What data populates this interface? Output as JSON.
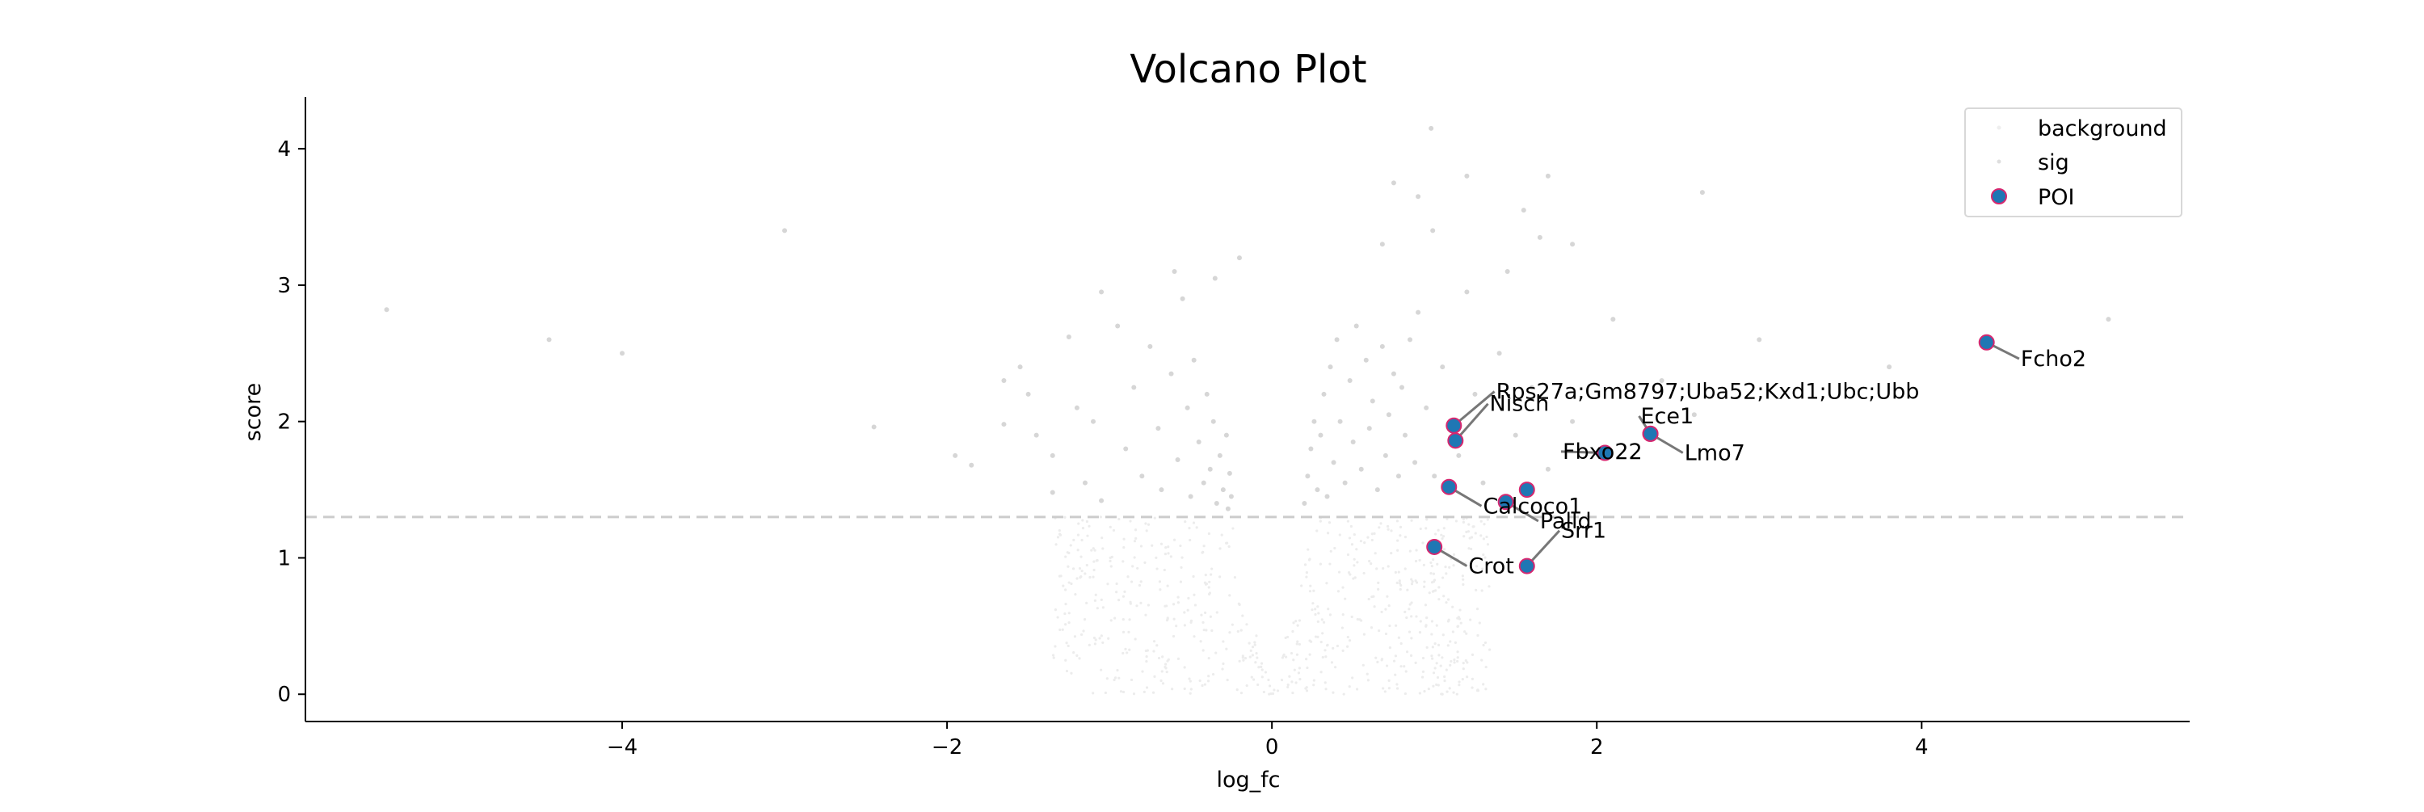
{
  "chart_data": {
    "type": "scatter",
    "title": "Volcano Plot",
    "xlabel": "log_fc",
    "ylabel": "score",
    "xlim": [
      -5.95,
      5.65
    ],
    "ylim": [
      -0.2,
      4.38
    ],
    "xticks": [
      -4,
      -2,
      0,
      2,
      4
    ],
    "yticks": [
      0,
      1,
      2,
      3,
      4
    ],
    "threshold": {
      "y": 1.3,
      "color": "#cccccc",
      "style": "dashed"
    },
    "grid": false,
    "legend": {
      "placement": "top-right",
      "entries": [
        {
          "label": "background",
          "color": "#e8e8e8"
        },
        {
          "label": "sig",
          "color": "#d9d9d9"
        },
        {
          "label": "POI",
          "color": "#1f77b4",
          "edge": "#d6276f"
        }
      ]
    },
    "series": [
      {
        "name": "sig",
        "color": "#d6d6d6",
        "points": [
          [
            -5.45,
            2.82
          ],
          [
            -4.45,
            2.6
          ],
          [
            -4.0,
            2.5
          ],
          [
            -3.0,
            3.4
          ],
          [
            -2.45,
            1.96
          ],
          [
            -1.95,
            1.75
          ],
          [
            -1.85,
            1.68
          ],
          [
            -1.65,
            2.3
          ],
          [
            -1.65,
            1.98
          ],
          [
            -1.55,
            2.4
          ],
          [
            -1.5,
            2.2
          ],
          [
            -1.45,
            1.9
          ],
          [
            -1.35,
            1.75
          ],
          [
            -1.35,
            1.48
          ],
          [
            -1.25,
            2.62
          ],
          [
            -1.2,
            2.1
          ],
          [
            -1.15,
            1.55
          ],
          [
            -1.1,
            2.0
          ],
          [
            -1.05,
            2.95
          ],
          [
            -1.05,
            1.42
          ],
          [
            -0.95,
            2.7
          ],
          [
            -0.9,
            1.8
          ],
          [
            -0.85,
            2.25
          ],
          [
            -0.8,
            1.6
          ],
          [
            -0.75,
            2.55
          ],
          [
            -0.7,
            1.95
          ],
          [
            -0.68,
            1.5
          ],
          [
            -0.62,
            2.35
          ],
          [
            -0.58,
            1.72
          ],
          [
            -0.55,
            2.9
          ],
          [
            -0.52,
            2.1
          ],
          [
            -0.5,
            1.45
          ],
          [
            -0.48,
            2.45
          ],
          [
            -0.45,
            1.85
          ],
          [
            -0.42,
            1.55
          ],
          [
            -0.4,
            2.2
          ],
          [
            -0.38,
            1.65
          ],
          [
            -0.36,
            2.0
          ],
          [
            -0.34,
            1.4
          ],
          [
            -0.32,
            1.75
          ],
          [
            -0.3,
            1.5
          ],
          [
            -0.28,
            1.9
          ],
          [
            -0.27,
            1.36
          ],
          [
            -0.26,
            1.62
          ],
          [
            -0.25,
            1.45
          ],
          [
            -0.6,
            3.1
          ],
          [
            -0.35,
            3.05
          ],
          [
            -0.2,
            3.2
          ],
          [
            0.2,
            1.4
          ],
          [
            0.22,
            1.6
          ],
          [
            0.24,
            1.8
          ],
          [
            0.26,
            2.0
          ],
          [
            0.28,
            1.5
          ],
          [
            0.3,
            1.9
          ],
          [
            0.32,
            2.2
          ],
          [
            0.34,
            1.45
          ],
          [
            0.36,
            2.4
          ],
          [
            0.38,
            1.7
          ],
          [
            0.4,
            2.6
          ],
          [
            0.42,
            2.0
          ],
          [
            0.45,
            1.55
          ],
          [
            0.48,
            2.3
          ],
          [
            0.5,
            1.85
          ],
          [
            0.52,
            2.7
          ],
          [
            0.55,
            1.65
          ],
          [
            0.58,
            2.45
          ],
          [
            0.6,
            1.95
          ],
          [
            0.62,
            2.15
          ],
          [
            0.65,
            1.5
          ],
          [
            0.68,
            2.55
          ],
          [
            0.7,
            1.75
          ],
          [
            0.72,
            2.05
          ],
          [
            0.75,
            2.35
          ],
          [
            0.78,
            1.6
          ],
          [
            0.8,
            2.25
          ],
          [
            0.82,
            1.9
          ],
          [
            0.85,
            2.6
          ],
          [
            0.88,
            1.7
          ],
          [
            0.9,
            2.8
          ],
          [
            0.95,
            2.1
          ],
          [
            1.0,
            1.6
          ],
          [
            1.05,
            2.4
          ],
          [
            1.1,
            2.0
          ],
          [
            1.15,
            1.75
          ],
          [
            1.2,
            2.95
          ],
          [
            1.25,
            2.2
          ],
          [
            1.3,
            1.55
          ],
          [
            1.4,
            2.5
          ],
          [
            1.5,
            1.9
          ],
          [
            1.6,
            2.25
          ],
          [
            1.7,
            1.65
          ],
          [
            1.85,
            2.0
          ],
          [
            2.1,
            2.75
          ],
          [
            2.4,
            2.3
          ],
          [
            2.6,
            2.05
          ],
          [
            3.0,
            2.6
          ],
          [
            3.8,
            2.4
          ],
          [
            5.15,
            2.75
          ],
          [
            0.68,
            3.3
          ],
          [
            0.9,
            3.65
          ],
          [
            1.2,
            3.8
          ],
          [
            1.45,
            3.1
          ],
          [
            0.75,
            3.75
          ],
          [
            1.55,
            3.55
          ],
          [
            1.65,
            3.35
          ],
          [
            0.99,
            3.4
          ],
          [
            2.65,
            3.68
          ],
          [
            0.98,
            4.15
          ],
          [
            1.7,
            3.8
          ],
          [
            1.85,
            3.3
          ]
        ]
      },
      {
        "name": "POI",
        "color": "#1f77b4",
        "edgecolor": "#d6276f",
        "points": [
          {
            "x": 4.4,
            "y": 2.58,
            "label": "Fcho2",
            "dx": 0.2,
            "dy": -0.12
          },
          {
            "x": 1.12,
            "y": 1.97,
            "label": "Rps27a;Gm8797;Uba52;Kxd1;Ubc;Ubb",
            "dx": 0.25,
            "dy": 0.25
          },
          {
            "x": 1.13,
            "y": 1.86,
            "label": "Nisch",
            "dx": 0.2,
            "dy": 0.27
          },
          {
            "x": 2.33,
            "y": 1.91,
            "label": "Ece1",
            "dx": -0.07,
            "dy": 0.13
          },
          {
            "x": 2.33,
            "y": 1.91,
            "label": "Lmo7",
            "dx": 0.2,
            "dy": -0.14
          },
          {
            "x": 2.05,
            "y": 1.77,
            "label": "Fbxo22",
            "dx": -0.27,
            "dy": 0.01
          },
          {
            "x": 1.57,
            "y": 1.5,
            "label": "",
            "dx": 0,
            "dy": 0
          },
          {
            "x": 1.09,
            "y": 1.52,
            "label": "Calcoco1",
            "dx": 0.2,
            "dy": -0.14
          },
          {
            "x": 1.44,
            "y": 1.41,
            "label": "Palld",
            "dx": 0.2,
            "dy": -0.14
          },
          {
            "x": 1.57,
            "y": 0.94,
            "label": "Srr1",
            "dx": 0.2,
            "dy": 0.26
          },
          {
            "x": 1.0,
            "y": 1.08,
            "label": "Crot",
            "dx": 0.2,
            "dy": -0.14
          }
        ]
      }
    ]
  }
}
